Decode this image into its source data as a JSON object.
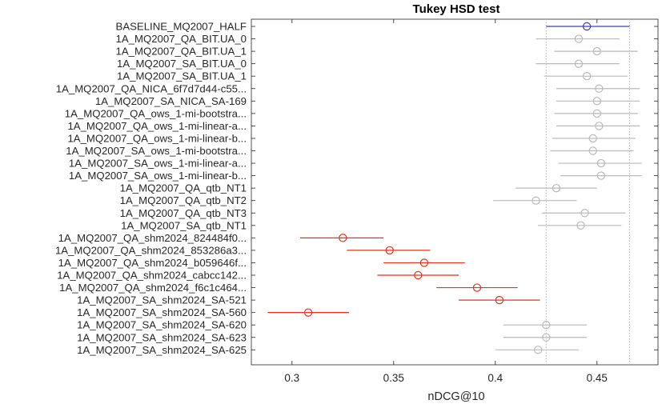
{
  "chart_data": {
    "type": "scatter",
    "title": "Tukey HSD test",
    "xlabel": "nDCG@10",
    "xlim": [
      0.28,
      0.48
    ],
    "xticks": [
      0.3,
      0.35,
      0.4,
      0.45
    ],
    "xtick_labels": [
      "0.3",
      "0.35",
      "0.4",
      "0.45"
    ],
    "reference_lines": [
      0.425,
      0.466
    ],
    "colors": {
      "reference": "#3c3cb4",
      "significant": "#e8321e",
      "neutral": "#b9b9b9",
      "axis": "#262626",
      "refline": "#b4b4b4"
    },
    "rows": [
      {
        "label": "BASELINE_MQ2007_HALF",
        "mean": 0.445,
        "low": 0.425,
        "high": 0.466,
        "group": "reference"
      },
      {
        "label": "1A_MQ2007_QA_BIT.UA_0",
        "mean": 0.441,
        "low": 0.42,
        "high": 0.461,
        "group": "neutral"
      },
      {
        "label": "1A_MQ2007_QA_BIT.UA_1",
        "mean": 0.45,
        "low": 0.429,
        "high": 0.47,
        "group": "neutral"
      },
      {
        "label": "1A_MQ2007_SA_BIT.UA_0",
        "mean": 0.441,
        "low": 0.42,
        "high": 0.461,
        "group": "neutral"
      },
      {
        "label": "1A_MQ2007_SA_BIT.UA_1",
        "mean": 0.445,
        "low": 0.424,
        "high": 0.465,
        "group": "neutral"
      },
      {
        "label": "1A_MQ2007_QA_NICA_6f7d7d44-c55...",
        "mean": 0.451,
        "low": 0.43,
        "high": 0.471,
        "group": "neutral"
      },
      {
        "label": "1A_MQ2007_SA_NICA_SA-169",
        "mean": 0.45,
        "low": 0.43,
        "high": 0.471,
        "group": "neutral"
      },
      {
        "label": "1A_MQ2007_QA_ows_1-mi-bootstra...",
        "mean": 0.45,
        "low": 0.429,
        "high": 0.47,
        "group": "neutral"
      },
      {
        "label": "1A_MQ2007_QA_ows_1-mi-linear-a...",
        "mean": 0.451,
        "low": 0.43,
        "high": 0.471,
        "group": "neutral"
      },
      {
        "label": "1A_MQ2007_QA_ows_1-mi-linear-b...",
        "mean": 0.448,
        "low": 0.428,
        "high": 0.469,
        "group": "neutral"
      },
      {
        "label": "1A_MQ2007_SA_ows_1-mi-bootstra...",
        "mean": 0.448,
        "low": 0.427,
        "high": 0.468,
        "group": "neutral"
      },
      {
        "label": "1A_MQ2007_SA_ows_1-mi-linear-a...",
        "mean": 0.452,
        "low": 0.431,
        "high": 0.472,
        "group": "neutral"
      },
      {
        "label": "1A_MQ2007_SA_ows_1-mi-linear-b...",
        "mean": 0.452,
        "low": 0.432,
        "high": 0.472,
        "group": "neutral"
      },
      {
        "label": "1A_MQ2007_QA_qtb_NT1",
        "mean": 0.43,
        "low": 0.41,
        "high": 0.45,
        "group": "neutral"
      },
      {
        "label": "1A_MQ2007_QA_qtb_NT2",
        "mean": 0.42,
        "low": 0.399,
        "high": 0.44,
        "group": "neutral"
      },
      {
        "label": "1A_MQ2007_QA_qtb_NT3",
        "mean": 0.444,
        "low": 0.423,
        "high": 0.464,
        "group": "neutral"
      },
      {
        "label": "1A_MQ2007_SA_qtb_NT1",
        "mean": 0.442,
        "low": 0.421,
        "high": 0.462,
        "group": "neutral"
      },
      {
        "label": "1A_MQ2007_QA_shm2024_824484f0...",
        "mean": 0.325,
        "low": 0.304,
        "high": 0.345,
        "group": "significant"
      },
      {
        "label": "1A_MQ2007_QA_shm2024_853286a3...",
        "mean": 0.348,
        "low": 0.327,
        "high": 0.368,
        "group": "significant"
      },
      {
        "label": "1A_MQ2007_QA_shm2024_b059646f...",
        "mean": 0.365,
        "low": 0.345,
        "high": 0.385,
        "group": "significant"
      },
      {
        "label": "1A_MQ2007_QA_shm2024_cabcc142...",
        "mean": 0.362,
        "low": 0.342,
        "high": 0.382,
        "group": "significant"
      },
      {
        "label": "1A_MQ2007_QA_shm2024_f6c1c464...",
        "mean": 0.391,
        "low": 0.371,
        "high": 0.411,
        "group": "significant"
      },
      {
        "label": "1A_MQ2007_SA_shm2024_SA-521",
        "mean": 0.402,
        "low": 0.382,
        "high": 0.422,
        "group": "significant"
      },
      {
        "label": "1A_MQ2007_SA_shm2024_SA-560",
        "mean": 0.308,
        "low": 0.288,
        "high": 0.328,
        "group": "significant"
      },
      {
        "label": "1A_MQ2007_SA_shm2024_SA-620",
        "mean": 0.425,
        "low": 0.404,
        "high": 0.445,
        "group": "neutral"
      },
      {
        "label": "1A_MQ2007_SA_shm2024_SA-623",
        "mean": 0.425,
        "low": 0.404,
        "high": 0.445,
        "group": "neutral"
      },
      {
        "label": "1A_MQ2007_SA_shm2024_SA-625",
        "mean": 0.421,
        "low": 0.4,
        "high": 0.441,
        "group": "neutral"
      }
    ]
  }
}
